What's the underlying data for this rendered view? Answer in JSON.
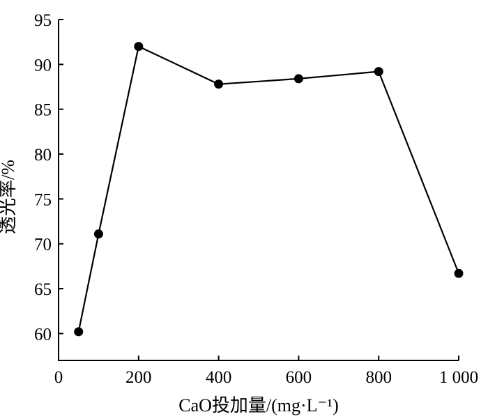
{
  "chart_data": {
    "type": "line",
    "xlabel": "CaO投加量/(mg·L⁻¹)",
    "ylabel": "透光率/%",
    "xlim": [
      0,
      1000
    ],
    "ylim": [
      57,
      95
    ],
    "x_ticks": [
      0,
      200,
      400,
      600,
      800,
      1000
    ],
    "x_tick_labels": [
      "0",
      "200",
      "400",
      "600",
      "800",
      "1 000"
    ],
    "y_ticks": [
      60,
      65,
      70,
      75,
      80,
      85,
      90,
      95
    ],
    "y_tick_labels": [
      "60",
      "65",
      "70",
      "75",
      "80",
      "85",
      "90",
      "95"
    ],
    "grid": false,
    "series": [
      {
        "x": [
          50,
          100,
          200,
          400,
          600,
          800,
          1000
        ],
        "y": [
          60.2,
          71.1,
          92.0,
          87.8,
          88.4,
          89.2,
          66.7
        ],
        "color": "#000000",
        "marker": "filled-circle"
      }
    ]
  }
}
